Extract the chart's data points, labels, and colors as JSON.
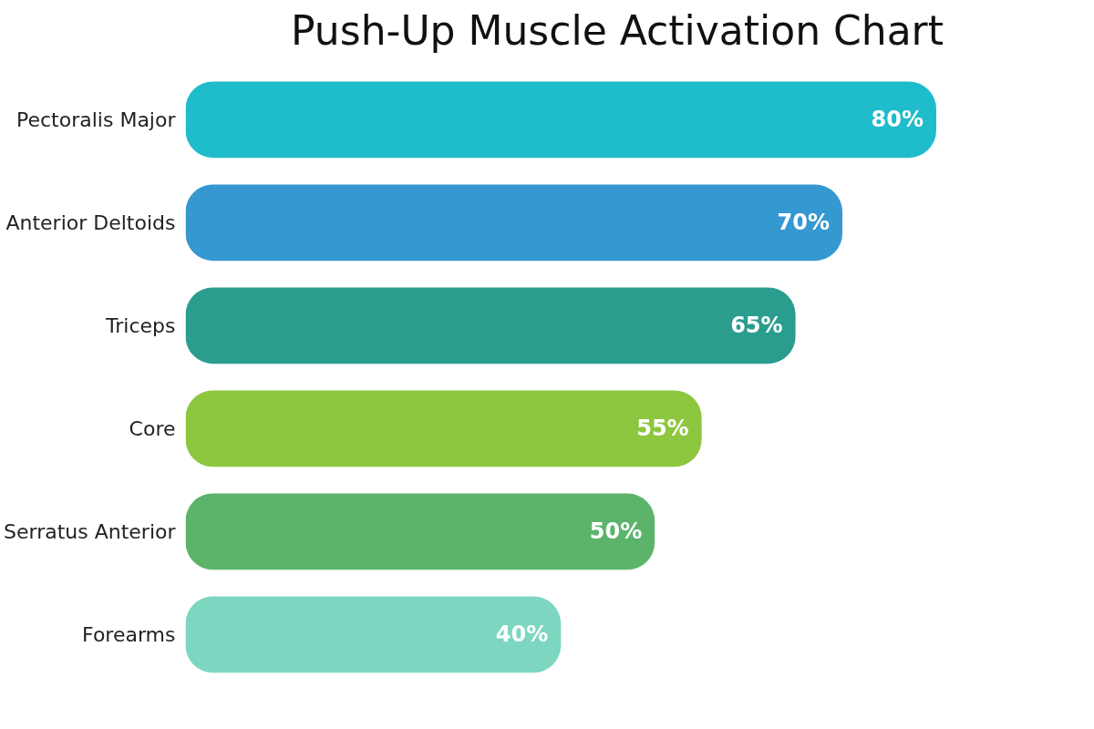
{
  "chart_data": {
    "type": "bar",
    "orientation": "horizontal",
    "title": "Push-Up Muscle Activation Chart",
    "categories": [
      "Pectoralis Major",
      "Anterior Deltoids",
      "Triceps",
      "Core",
      "Serratus Anterior",
      "Forearms"
    ],
    "values": [
      80,
      70,
      65,
      55,
      50,
      40
    ],
    "colors": [
      "#1fbccc",
      "#3698d0",
      "#2a9d8f",
      "#8dc63f",
      "#5cb46b",
      "#7dd6bf"
    ],
    "value_labels": [
      "80%",
      "70%",
      "65%",
      "55%",
      "50%",
      "40%"
    ],
    "tick_labels": "y"
  }
}
